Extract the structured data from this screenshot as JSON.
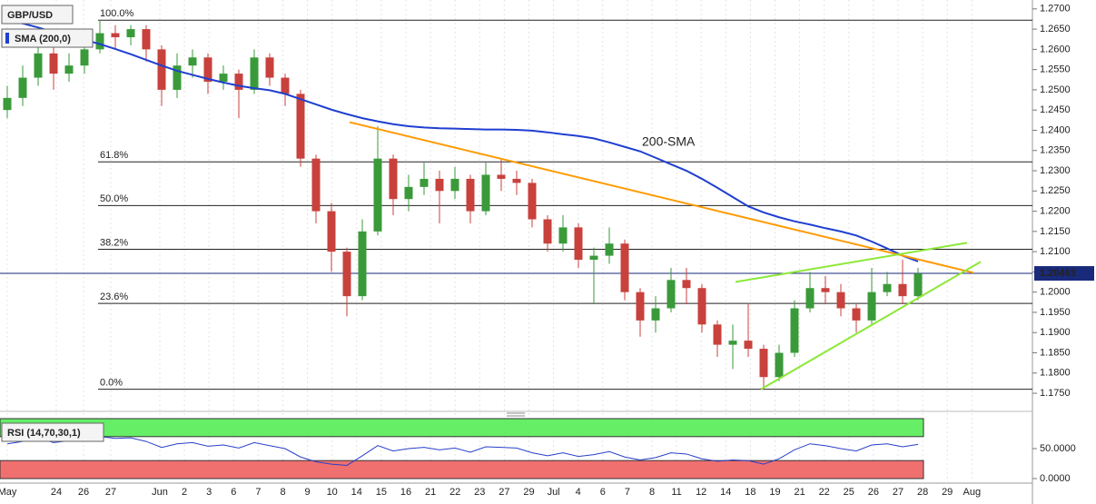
{
  "chart_data": {
    "type": "candlestick",
    "title": "GBP/USD",
    "x_labels": [
      "May",
      "24",
      "26",
      "27",
      "Jun",
      "2",
      "3",
      "6",
      "7",
      "8",
      "9",
      "10",
      "14",
      "15",
      "16",
      "21",
      "22",
      "23",
      "27",
      "29",
      "Jul",
      "4",
      "6",
      "7",
      "8",
      "11",
      "12",
      "14",
      "18",
      "19",
      "21",
      "22",
      "25",
      "26",
      "27",
      "28",
      "29",
      "Aug"
    ],
    "candles": {
      "open": [
        1.245,
        1.248,
        1.253,
        1.259,
        1.254,
        1.256,
        1.26,
        1.264,
        1.263,
        1.265,
        1.26,
        1.25,
        1.256,
        1.258,
        1.252,
        1.254,
        1.25,
        1.258,
        1.253,
        1.249,
        1.233,
        1.22,
        1.21,
        1.199,
        1.215,
        1.233,
        1.223,
        1.226,
        1.228,
        1.225,
        1.228,
        1.22,
        1.229,
        1.228,
        1.227,
        1.218,
        1.212,
        1.216,
        1.208,
        1.209,
        1.212,
        1.2,
        1.193,
        1.196,
        1.203,
        1.201,
        1.192,
        1.187,
        1.188,
        1.186,
        1.179,
        1.185,
        1.196,
        1.201,
        1.2,
        1.196,
        1.193,
        1.2,
        1.202,
        1.199
      ],
      "high": [
        1.251,
        1.256,
        1.261,
        1.261,
        1.259,
        1.263,
        1.267,
        1.266,
        1.266,
        1.266,
        1.261,
        1.259,
        1.26,
        1.259,
        1.256,
        1.255,
        1.26,
        1.259,
        1.254,
        1.25,
        1.234,
        1.222,
        1.211,
        1.218,
        1.241,
        1.234,
        1.229,
        1.232,
        1.23,
        1.231,
        1.229,
        1.232,
        1.233,
        1.23,
        1.228,
        1.219,
        1.219,
        1.217,
        1.211,
        1.216,
        1.213,
        1.201,
        1.199,
        1.206,
        1.206,
        1.202,
        1.193,
        1.192,
        1.197,
        1.187,
        1.187,
        1.198,
        1.205,
        1.204,
        1.202,
        1.197,
        1.206,
        1.205,
        1.208,
        1.206
      ],
      "low": [
        1.243,
        1.246,
        1.251,
        1.25,
        1.252,
        1.254,
        1.259,
        1.26,
        1.261,
        1.257,
        1.246,
        1.248,
        1.253,
        1.249,
        1.25,
        1.243,
        1.249,
        1.251,
        1.246,
        1.231,
        1.217,
        1.205,
        1.194,
        1.198,
        1.214,
        1.219,
        1.22,
        1.224,
        1.217,
        1.223,
        1.217,
        1.219,
        1.225,
        1.224,
        1.216,
        1.21,
        1.21,
        1.206,
        1.197,
        1.207,
        1.198,
        1.189,
        1.19,
        1.195,
        1.197,
        1.19,
        1.184,
        1.181,
        1.184,
        1.176,
        1.178,
        1.184,
        1.195,
        1.197,
        1.194,
        1.19,
        1.192,
        1.199,
        1.197,
        1.198
      ],
      "close": [
        1.248,
        1.253,
        1.259,
        1.254,
        1.256,
        1.26,
        1.264,
        1.263,
        1.265,
        1.26,
        1.25,
        1.256,
        1.258,
        1.252,
        1.254,
        1.25,
        1.258,
        1.253,
        1.249,
        1.233,
        1.22,
        1.21,
        1.199,
        1.215,
        1.233,
        1.223,
        1.226,
        1.228,
        1.225,
        1.228,
        1.22,
        1.229,
        1.228,
        1.227,
        1.218,
        1.212,
        1.216,
        1.208,
        1.209,
        1.212,
        1.2,
        1.193,
        1.196,
        1.203,
        1.201,
        1.192,
        1.187,
        1.188,
        1.186,
        1.179,
        1.185,
        1.196,
        1.201,
        1.2,
        1.196,
        1.193,
        1.2,
        1.202,
        1.199,
        1.2046
      ]
    },
    "up_color": "#3a9a3a",
    "down_color": "#c8413c",
    "sma": {
      "name": "SMA (200,0)",
      "color": "#1f3fd0",
      "values": [
        1.2673,
        1.2664,
        1.2654,
        1.2643,
        1.2633,
        1.2624,
        1.2613,
        1.2601,
        1.2588,
        1.2574,
        1.256,
        1.2547,
        1.2537,
        1.2527,
        1.2518,
        1.251,
        1.2504,
        1.2499,
        1.249,
        1.2477,
        1.2464,
        1.2451,
        1.244,
        1.243,
        1.2422,
        1.2415,
        1.241,
        1.2407,
        1.2405,
        1.2404,
        1.2403,
        1.2402,
        1.2402,
        1.2401,
        1.2399,
        1.2395,
        1.239,
        1.2386,
        1.238,
        1.237,
        1.2359,
        1.2348,
        1.2332,
        1.2316,
        1.23,
        1.228,
        1.2258,
        1.2235,
        1.2212,
        1.2197,
        1.2185,
        1.2175,
        1.2167,
        1.2158,
        1.215,
        1.214,
        1.2125,
        1.2108,
        1.209,
        1.2076
      ]
    },
    "annotation": {
      "text": "200-SMA",
      "color": "#7a52c8"
    },
    "fib_levels": [
      {
        "name": "100.0%",
        "value": 1.2672
      },
      {
        "name": "61.8%",
        "value": 1.2322
      },
      {
        "name": "50.0%",
        "value": 1.2214
      },
      {
        "name": "38.2%",
        "value": 1.2106
      },
      {
        "name": "23.6%",
        "value": 1.1972
      },
      {
        "name": "0.0%",
        "value": 1.176
      }
    ],
    "trendlines": [
      {
        "color": "#ff9a00",
        "values": [
          1.242,
          1.2048
        ]
      },
      {
        "color": "#8ce838",
        "values": [
          1.2025,
          1.2122
        ]
      },
      {
        "color": "#8ce838",
        "values": [
          1.176,
          1.2075
        ]
      }
    ],
    "last_price": 1.20463,
    "last_price_color": "#1a2a7a",
    "ylim": [
      1.1712,
      1.2722
    ],
    "yticks": [
      {
        "value": 1.27,
        "label": "1.2700"
      },
      {
        "value": 1.265,
        "label": "1.2650"
      },
      {
        "value": 1.26,
        "label": "1.2600"
      },
      {
        "value": 1.255,
        "label": "1.2550"
      },
      {
        "value": 1.25,
        "label": "1.2500"
      },
      {
        "value": 1.245,
        "label": "1.2450"
      },
      {
        "value": 1.24,
        "label": "1.2400"
      },
      {
        "value": 1.235,
        "label": "1.2350"
      },
      {
        "value": 1.23,
        "label": "1.2300"
      },
      {
        "value": 1.225,
        "label": "1.2250"
      },
      {
        "value": 1.22,
        "label": "1.2200"
      },
      {
        "value": 1.215,
        "label": "1.2150"
      },
      {
        "value": 1.21,
        "label": "1.2100"
      },
      {
        "value": 1.205,
        "label": "1.2050"
      },
      {
        "value": 1.2,
        "label": "1.2000"
      },
      {
        "value": 1.195,
        "label": "1.1950"
      },
      {
        "value": 1.19,
        "label": "1.1900"
      },
      {
        "value": 1.185,
        "label": "1.1850"
      },
      {
        "value": 1.18,
        "label": "1.1800"
      },
      {
        "value": 1.175,
        "label": "1.1750"
      }
    ],
    "rsi": {
      "title": "RSI (14,70,30,1)",
      "color": "#2840c8",
      "ylim": [
        0,
        100
      ],
      "overbought": 70,
      "oversold": 30,
      "overbought_color": "#66ee66",
      "oversold_color": "#f07070",
      "yticks": [
        {
          "value": 50,
          "label": "50.0000"
        },
        {
          "value": 0,
          "label": "0.0000"
        }
      ],
      "values": [
        58,
        62,
        68,
        60,
        63,
        66,
        70,
        67,
        68,
        62,
        52,
        58,
        60,
        54,
        56,
        51,
        60,
        55,
        50,
        36,
        28,
        24,
        22,
        38,
        55,
        46,
        50,
        52,
        48,
        51,
        44,
        53,
        52,
        51,
        43,
        38,
        43,
        37,
        40,
        45,
        36,
        31,
        35,
        43,
        41,
        33,
        29,
        31,
        30,
        24,
        33,
        48,
        58,
        55,
        50,
        46,
        56,
        58,
        53,
        57
      ]
    }
  }
}
